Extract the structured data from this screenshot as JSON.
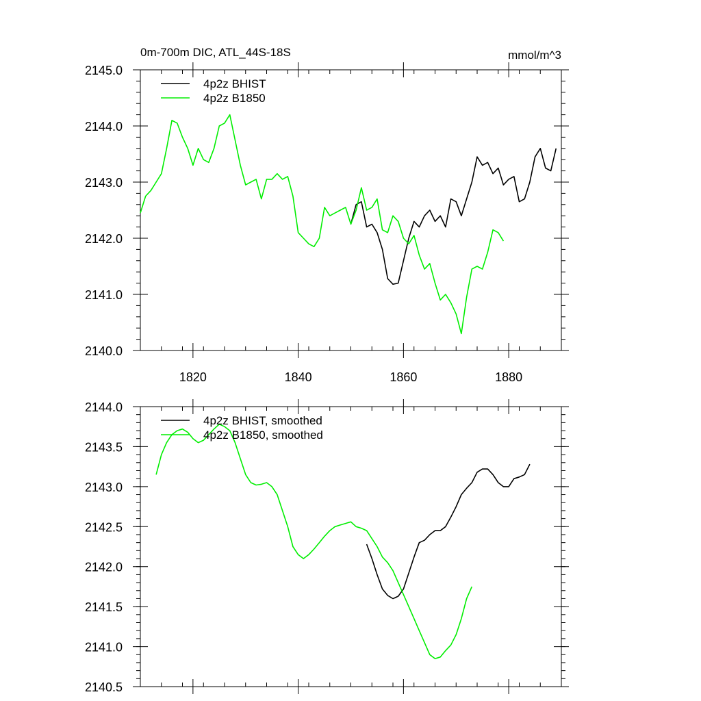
{
  "chart_data": [
    {
      "type": "line",
      "title": "0m-700m DIC, ATL_44S-18S",
      "units": "mmol/m^3",
      "xlim": [
        1810,
        1890
      ],
      "ylim": [
        2140.0,
        2145.0
      ],
      "x_ticks": [
        1820,
        1840,
        1860,
        1880
      ],
      "x_tick_labels": [
        "1820",
        "1840",
        "1860",
        "1880"
      ],
      "y_ticks": [
        2140,
        2141,
        2142,
        2143,
        2144,
        2145
      ],
      "y_tick_labels": [
        "2140.0",
        "2141.0",
        "2142.0",
        "2143.0",
        "2144.0",
        "2145.0"
      ],
      "legend_position": "top-left",
      "grid": false,
      "series": [
        {
          "name": "4p2z BHIST",
          "color": "#000000",
          "points": [
            [
              1850,
              2142.25
            ],
            [
              1851,
              2142.6
            ],
            [
              1852,
              2142.65
            ],
            [
              1853,
              2142.2
            ],
            [
              1854,
              2142.25
            ],
            [
              1855,
              2142.1
            ],
            [
              1856,
              2141.8
            ],
            [
              1857,
              2141.28
            ],
            [
              1858,
              2141.18
            ],
            [
              1859,
              2141.2
            ],
            [
              1860,
              2141.6
            ],
            [
              1861,
              2142.0
            ],
            [
              1862,
              2142.3
            ],
            [
              1863,
              2142.2
            ],
            [
              1864,
              2142.4
            ],
            [
              1865,
              2142.5
            ],
            [
              1866,
              2142.3
            ],
            [
              1867,
              2142.4
            ],
            [
              1868,
              2142.2
            ],
            [
              1869,
              2142.7
            ],
            [
              1870,
              2142.65
            ],
            [
              1871,
              2142.4
            ],
            [
              1872,
              2142.7
            ],
            [
              1873,
              2143.0
            ],
            [
              1874,
              2143.45
            ],
            [
              1875,
              2143.3
            ],
            [
              1876,
              2143.35
            ],
            [
              1877,
              2143.15
            ],
            [
              1878,
              2143.25
            ],
            [
              1879,
              2142.95
            ],
            [
              1880,
              2143.05
            ],
            [
              1881,
              2143.1
            ],
            [
              1882,
              2142.65
            ],
            [
              1883,
              2142.7
            ],
            [
              1884,
              2143.0
            ],
            [
              1885,
              2143.45
            ],
            [
              1886,
              2143.6
            ],
            [
              1887,
              2143.25
            ],
            [
              1888,
              2143.2
            ],
            [
              1889,
              2143.6
            ]
          ]
        },
        {
          "name": "4p2z B1850",
          "color": "#00ee00",
          "points": [
            [
              1810,
              2142.45
            ],
            [
              1811,
              2142.75
            ],
            [
              1812,
              2142.85
            ],
            [
              1813,
              2143.0
            ],
            [
              1814,
              2143.15
            ],
            [
              1815,
              2143.6
            ],
            [
              1816,
              2144.1
            ],
            [
              1817,
              2144.05
            ],
            [
              1818,
              2143.8
            ],
            [
              1819,
              2143.6
            ],
            [
              1820,
              2143.3
            ],
            [
              1821,
              2143.6
            ],
            [
              1822,
              2143.4
            ],
            [
              1823,
              2143.35
            ],
            [
              1824,
              2143.6
            ],
            [
              1825,
              2144.0
            ],
            [
              1826,
              2144.05
            ],
            [
              1827,
              2144.2
            ],
            [
              1828,
              2143.75
            ],
            [
              1829,
              2143.3
            ],
            [
              1830,
              2142.95
            ],
            [
              1831,
              2143.0
            ],
            [
              1832,
              2143.05
            ],
            [
              1833,
              2142.7
            ],
            [
              1834,
              2143.05
            ],
            [
              1835,
              2143.05
            ],
            [
              1836,
              2143.15
            ],
            [
              1837,
              2143.05
            ],
            [
              1838,
              2143.1
            ],
            [
              1839,
              2142.75
            ],
            [
              1840,
              2142.1
            ],
            [
              1841,
              2142.0
            ],
            [
              1842,
              2141.9
            ],
            [
              1843,
              2141.85
            ],
            [
              1844,
              2142.0
            ],
            [
              1845,
              2142.55
            ],
            [
              1846,
              2142.4
            ],
            [
              1847,
              2142.45
            ],
            [
              1848,
              2142.5
            ],
            [
              1849,
              2142.55
            ],
            [
              1850,
              2142.25
            ],
            [
              1851,
              2142.5
            ],
            [
              1852,
              2142.9
            ],
            [
              1853,
              2142.5
            ],
            [
              1854,
              2142.55
            ],
            [
              1855,
              2142.7
            ],
            [
              1856,
              2142.15
            ],
            [
              1857,
              2142.1
            ],
            [
              1858,
              2142.4
            ],
            [
              1859,
              2142.3
            ],
            [
              1860,
              2142.0
            ],
            [
              1861,
              2141.9
            ],
            [
              1862,
              2142.05
            ],
            [
              1863,
              2141.7
            ],
            [
              1864,
              2141.45
            ],
            [
              1865,
              2141.55
            ],
            [
              1866,
              2141.2
            ],
            [
              1867,
              2140.9
            ],
            [
              1868,
              2141.0
            ],
            [
              1869,
              2140.85
            ],
            [
              1870,
              2140.65
            ],
            [
              1871,
              2140.3
            ],
            [
              1872,
              2140.95
            ],
            [
              1873,
              2141.45
            ],
            [
              1874,
              2141.5
            ],
            [
              1875,
              2141.45
            ],
            [
              1876,
              2141.75
            ],
            [
              1877,
              2142.15
            ],
            [
              1878,
              2142.1
            ],
            [
              1879,
              2141.95
            ]
          ]
        }
      ]
    },
    {
      "type": "line",
      "title": "",
      "xlim": [
        1810,
        1890
      ],
      "ylim": [
        2140.5,
        2144.0
      ],
      "x_ticks": [
        1820,
        1840,
        1860,
        1880
      ],
      "x_tick_labels": [],
      "y_ticks": [
        2140.5,
        2141.0,
        2141.5,
        2142.0,
        2142.5,
        2143.0,
        2143.5,
        2144.0
      ],
      "y_tick_labels": [
        "2140.5",
        "2141.0",
        "2141.5",
        "2142.0",
        "2142.5",
        "2143.0",
        "2143.5",
        "2144.0"
      ],
      "legend_position": "top-left",
      "grid": false,
      "series": [
        {
          "name": "4p2z BHIST, smoothed",
          "color": "#000000",
          "points": [
            [
              1853,
              2142.28
            ],
            [
              1854,
              2142.1
            ],
            [
              1855,
              2141.9
            ],
            [
              1856,
              2141.72
            ],
            [
              1857,
              2141.64
            ],
            [
              1858,
              2141.6
            ],
            [
              1859,
              2141.63
            ],
            [
              1860,
              2141.72
            ],
            [
              1861,
              2141.92
            ],
            [
              1862,
              2142.12
            ],
            [
              1863,
              2142.3
            ],
            [
              1864,
              2142.33
            ],
            [
              1865,
              2142.4
            ],
            [
              1866,
              2142.45
            ],
            [
              1867,
              2142.45
            ],
            [
              1868,
              2142.5
            ],
            [
              1869,
              2142.62
            ],
            [
              1870,
              2142.75
            ],
            [
              1871,
              2142.9
            ],
            [
              1872,
              2142.98
            ],
            [
              1873,
              2143.05
            ],
            [
              1874,
              2143.18
            ],
            [
              1875,
              2143.22
            ],
            [
              1876,
              2143.22
            ],
            [
              1877,
              2143.15
            ],
            [
              1878,
              2143.05
            ],
            [
              1879,
              2143.0
            ],
            [
              1880,
              2143.0
            ],
            [
              1881,
              2143.1
            ],
            [
              1882,
              2143.12
            ],
            [
              1883,
              2143.15
            ],
            [
              1884,
              2143.28
            ]
          ]
        },
        {
          "name": "4p2z B1850, smoothed",
          "color": "#00ee00",
          "points": [
            [
              1813,
              2143.15
            ],
            [
              1814,
              2143.4
            ],
            [
              1815,
              2143.55
            ],
            [
              1816,
              2143.65
            ],
            [
              1817,
              2143.7
            ],
            [
              1818,
              2143.72
            ],
            [
              1819,
              2143.68
            ],
            [
              1820,
              2143.6
            ],
            [
              1821,
              2143.55
            ],
            [
              1822,
              2143.58
            ],
            [
              1823,
              2143.65
            ],
            [
              1824,
              2143.72
            ],
            [
              1825,
              2143.78
            ],
            [
              1826,
              2143.75
            ],
            [
              1827,
              2143.7
            ],
            [
              1828,
              2143.55
            ],
            [
              1829,
              2143.35
            ],
            [
              1830,
              2143.15
            ],
            [
              1831,
              2143.05
            ],
            [
              1832,
              2143.02
            ],
            [
              1833,
              2143.03
            ],
            [
              1834,
              2143.05
            ],
            [
              1835,
              2143.0
            ],
            [
              1836,
              2142.9
            ],
            [
              1837,
              2142.7
            ],
            [
              1838,
              2142.5
            ],
            [
              1839,
              2142.25
            ],
            [
              1840,
              2142.15
            ],
            [
              1841,
              2142.1
            ],
            [
              1842,
              2142.15
            ],
            [
              1843,
              2142.22
            ],
            [
              1844,
              2142.3
            ],
            [
              1845,
              2142.38
            ],
            [
              1846,
              2142.45
            ],
            [
              1847,
              2142.5
            ],
            [
              1848,
              2142.52
            ],
            [
              1849,
              2142.54
            ],
            [
              1850,
              2142.56
            ],
            [
              1851,
              2142.5
            ],
            [
              1852,
              2142.48
            ],
            [
              1853,
              2142.45
            ],
            [
              1854,
              2142.35
            ],
            [
              1855,
              2142.25
            ],
            [
              1856,
              2142.12
            ],
            [
              1857,
              2142.05
            ],
            [
              1858,
              2141.95
            ],
            [
              1859,
              2141.8
            ],
            [
              1860,
              2141.65
            ],
            [
              1861,
              2141.5
            ],
            [
              1862,
              2141.35
            ],
            [
              1863,
              2141.2
            ],
            [
              1864,
              2141.05
            ],
            [
              1865,
              2140.9
            ],
            [
              1866,
              2140.85
            ],
            [
              1867,
              2140.87
            ],
            [
              1868,
              2140.95
            ],
            [
              1869,
              2141.02
            ],
            [
              1870,
              2141.15
            ],
            [
              1871,
              2141.35
            ],
            [
              1872,
              2141.6
            ],
            [
              1873,
              2141.75
            ]
          ]
        }
      ]
    }
  ]
}
